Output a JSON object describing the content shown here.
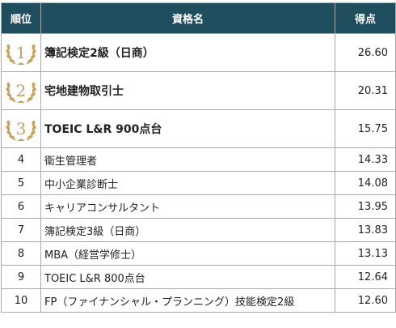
{
  "header": {
    "rank": "順位",
    "name": "資格名",
    "score": "得点"
  },
  "colors": {
    "header_bg": "#1f4e5f",
    "header_text": "#ffffff",
    "medal_gold": "#c9a15a",
    "border": "#a9a9a9"
  },
  "rows": [
    {
      "rank": "1",
      "name": "簿記検定2級（日商）",
      "score": "26.60",
      "medal": "laurel-medal-1-icon"
    },
    {
      "rank": "2",
      "name": "宅地建物取引士",
      "score": "20.31",
      "medal": "laurel-medal-2-icon"
    },
    {
      "rank": "3",
      "name": "TOEIC L&R 900点台",
      "score": "15.75",
      "medal": "laurel-medal-3-icon"
    },
    {
      "rank": "4",
      "name": "衛生管理者",
      "score": "14.33"
    },
    {
      "rank": "5",
      "name": "中小企業診断士",
      "score": "14.08"
    },
    {
      "rank": "6",
      "name": "キャリアコンサルタント",
      "score": "13.95"
    },
    {
      "rank": "7",
      "name": "簿記検定3級（日商）",
      "score": "13.83"
    },
    {
      "rank": "8",
      "name": "MBA（経営学修士）",
      "score": "13.13"
    },
    {
      "rank": "9",
      "name": "TOEIC L&R 800点台",
      "score": "12.64"
    },
    {
      "rank": "10",
      "name": "FP（ファイナンシャル・プランニング）技能検定2級",
      "score": "12.60"
    }
  ]
}
